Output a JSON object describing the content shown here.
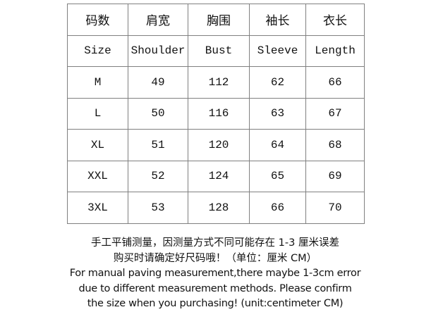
{
  "table": {
    "header_zh": [
      "码数",
      "肩宽",
      "胸围",
      "袖长",
      "衣长"
    ],
    "header_en": [
      "Size",
      "Shoulder",
      "Bust",
      "Sleeve",
      "Length"
    ],
    "rows": [
      [
        "M",
        "49",
        "112",
        "62",
        "66"
      ],
      [
        "L",
        "50",
        "116",
        "63",
        "67"
      ],
      [
        "XL",
        "51",
        "120",
        "64",
        "68"
      ],
      [
        "XXL",
        "52",
        "124",
        "65",
        "69"
      ],
      [
        "3XL",
        "53",
        "128",
        "66",
        "70"
      ]
    ]
  },
  "notes": [
    "手工平铺测量，因测量方式不同可能存在 1-3 厘米误差",
    "购买时请确定好尺码哦！（单位：厘米 CM）",
    "For manual paving measurement,there maybe 1-3cm error",
    "due to different measurement methods. Please confirm",
    "the size when you purchasing! (unit:centimeter CM)"
  ]
}
